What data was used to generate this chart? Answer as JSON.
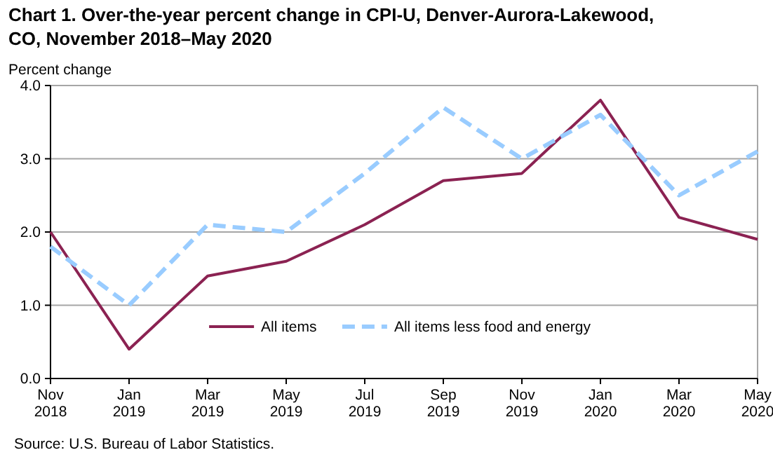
{
  "chart_data": {
    "type": "line",
    "title": "Chart 1. Over-the-year percent change in CPI-U, Denver-Aurora-Lakewood, CO, November 2018–May 2020",
    "ylabel": "Percent change",
    "categories": [
      "Nov 2018",
      "Jan 2019",
      "Mar 2019",
      "May 2019",
      "Jul 2019",
      "Sep 2019",
      "Nov 2019",
      "Jan 2020",
      "Mar 2020",
      "May 2020"
    ],
    "series": [
      {
        "name": "All items",
        "color": "#8b2252",
        "line_style": "solid",
        "values": [
          2.0,
          0.4,
          1.4,
          1.6,
          2.1,
          2.7,
          2.8,
          3.8,
          2.2,
          1.9
        ]
      },
      {
        "name": "All items less food and energy",
        "color": "#99ccff",
        "line_style": "dashed",
        "values": [
          1.8,
          1.0,
          2.1,
          2.0,
          2.8,
          3.7,
          3.0,
          3.6,
          2.5,
          3.1
        ]
      }
    ],
    "ylim": [
      0,
      4
    ],
    "yticks": [
      {
        "value": 0,
        "label": "0.0"
      },
      {
        "value": 1,
        "label": "1.0"
      },
      {
        "value": 2,
        "label": "2.0"
      },
      {
        "value": 3,
        "label": "3.0"
      },
      {
        "value": 4,
        "label": "4.0"
      }
    ],
    "grid": "y",
    "legend": "bottom",
    "marker": "none",
    "annotations": [
      "Source: U.S. Bureau of Labor Statistics."
    ]
  }
}
